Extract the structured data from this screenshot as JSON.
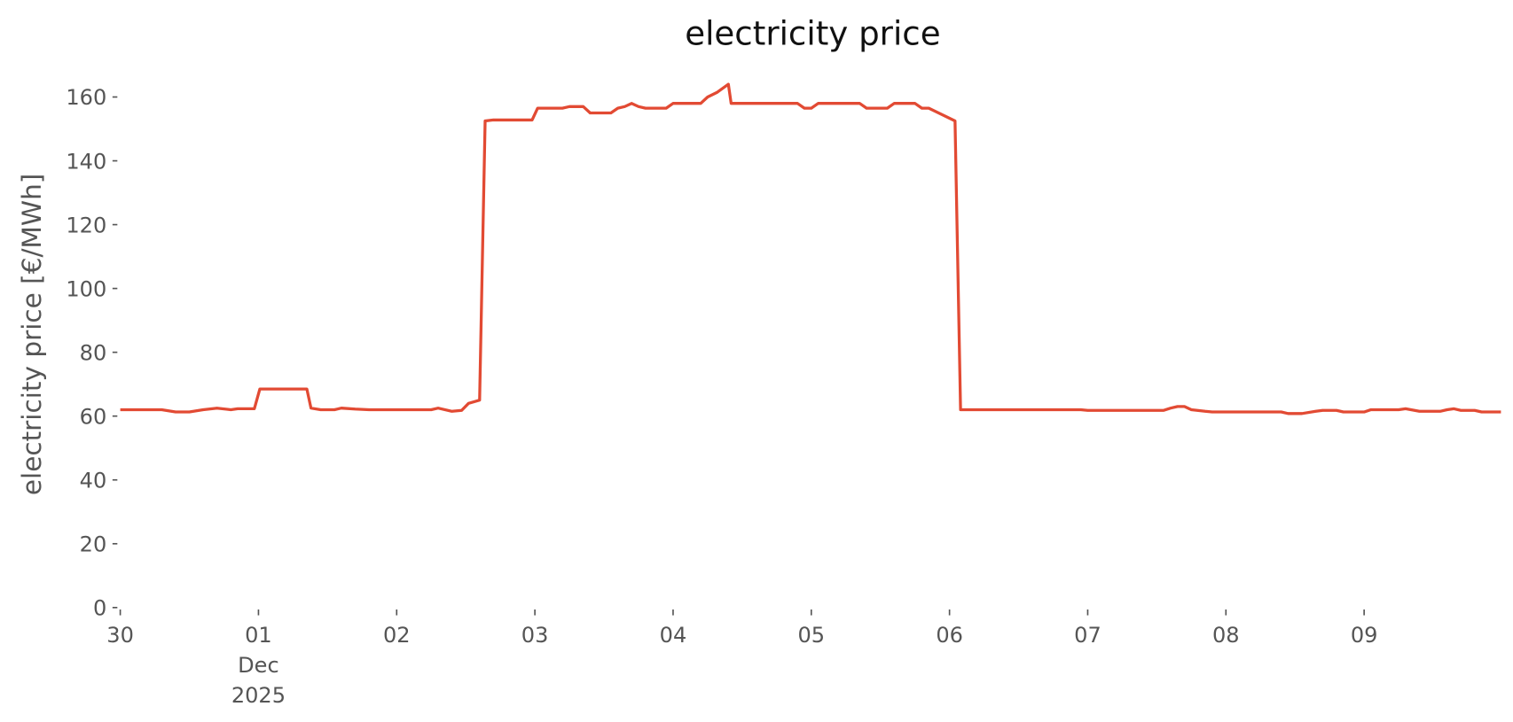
{
  "chart_data": {
    "type": "line",
    "title": "electricity price",
    "y_label": "electricity price [€/MWh]",
    "color": "#e24a33",
    "x": [
      0,
      0.3,
      0.4,
      0.5,
      0.6,
      0.7,
      0.8,
      0.85,
      0.97,
      1.01,
      1.35,
      1.38,
      1.45,
      1.55,
      1.6,
      1.7,
      1.8,
      2.25,
      2.3,
      2.4,
      2.47,
      2.52,
      2.6,
      2.64,
      2.7,
      2.98,
      3.02,
      3.2,
      3.25,
      3.35,
      3.4,
      3.55,
      3.6,
      3.65,
      3.7,
      3.75,
      3.8,
      3.95,
      4.0,
      4.2,
      4.25,
      4.32,
      4.4,
      4.42,
      4.9,
      4.95,
      5.0,
      5.05,
      5.35,
      5.4,
      5.55,
      5.6,
      5.75,
      5.8,
      5.85,
      6.04,
      6.08,
      6.95,
      7.0,
      7.55,
      7.6,
      7.65,
      7.7,
      7.75,
      7.85,
      7.9,
      8.4,
      8.45,
      8.55,
      8.65,
      8.7,
      8.8,
      8.85,
      9.0,
      9.05,
      9.25,
      9.3,
      9.4,
      9.55,
      9.6,
      9.65,
      9.7,
      9.8,
      9.85,
      9.99
    ],
    "values": [
      62,
      62,
      61.3,
      61.3,
      62,
      62.5,
      62,
      62.3,
      62.3,
      68.5,
      68.5,
      62.5,
      62,
      62,
      62.5,
      62.2,
      62,
      62,
      62.5,
      61.5,
      61.8,
      64,
      65,
      152.5,
      152.8,
      152.8,
      156.5,
      156.5,
      157,
      157,
      155,
      155,
      156.5,
      157,
      158,
      157,
      156.5,
      156.5,
      158,
      158,
      160,
      161.5,
      164,
      158,
      158,
      156.5,
      156.5,
      158,
      158,
      156.5,
      156.5,
      158,
      158,
      156.5,
      156.5,
      152.5,
      62,
      62,
      61.8,
      61.8,
      62.5,
      63,
      63,
      62,
      61.5,
      61.3,
      61.3,
      60.8,
      60.8,
      61.5,
      61.8,
      61.8,
      61.3,
      61.3,
      62,
      62,
      62.3,
      61.5,
      61.5,
      62,
      62.3,
      61.8,
      61.8,
      61.3,
      61.3
    ],
    "xlim": [
      0,
      10
    ],
    "xticks": [
      {
        "value": 0,
        "label": "30"
      },
      {
        "value": 1,
        "label": "01\nDec\n2025"
      },
      {
        "value": 2,
        "label": "02"
      },
      {
        "value": 3,
        "label": "03"
      },
      {
        "value": 4,
        "label": "04"
      },
      {
        "value": 5,
        "label": "05"
      },
      {
        "value": 6,
        "label": "06"
      },
      {
        "value": 7,
        "label": "07"
      },
      {
        "value": 8,
        "label": "08"
      },
      {
        "value": 9,
        "label": "09"
      }
    ],
    "ylim": [
      0,
      160
    ],
    "yticks": [
      0,
      20,
      40,
      60,
      80,
      100,
      120,
      140,
      160
    ]
  }
}
